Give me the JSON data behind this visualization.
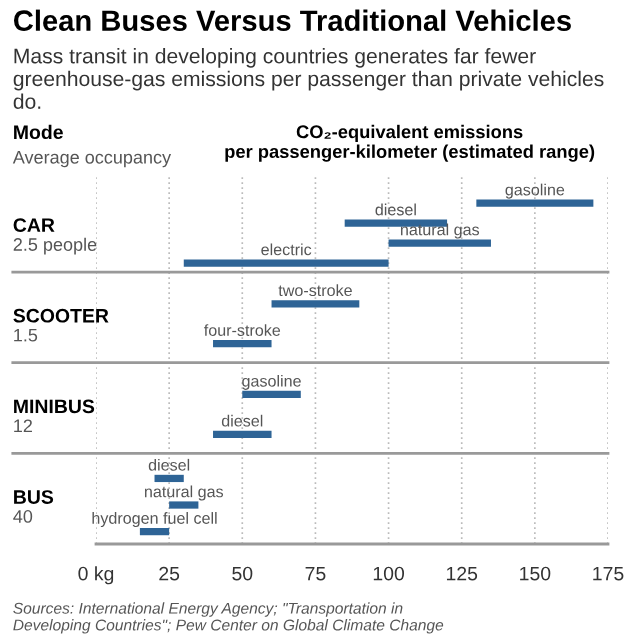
{
  "chart_data": [
    {
      "type": "other",
      "title": "Clean Buses Versus Traditional Vehicles",
      "subtitle": "Mass transit in developing countries generates far fewer greenhouse-gas emissions per passenger than private vehicles do.",
      "annotations": [
        "Mode",
        "Average occupancy",
        "CO₂-equivalent emissions\nper passenger-kilometer (estimated range)",
        "Sources: International Energy Agency; \"Transportation in\nDeveloping Countries\"; Pew Center on Global Climate Change"
      ]
    },
    {
      "type": "bar",
      "orientation": "horizontal",
      "categories": [
        "CAR",
        "SCOOTER",
        "MINIBUS",
        "BUS"
      ],
      "series": [
        {
          "name": "gasoline",
          "color": "#2e6496",
          "base": [
            130,
            null,
            50,
            null
          ],
          "values": [
            40,
            null,
            20,
            null
          ]
        },
        {
          "name": "diesel",
          "color": "#2e6496",
          "base": [
            85,
            null,
            40,
            20
          ],
          "values": [
            35,
            null,
            20,
            10
          ]
        },
        {
          "name": "natural gas",
          "color": "#2e6496",
          "base": [
            100,
            null,
            null,
            25
          ],
          "values": [
            35,
            null,
            null,
            10
          ]
        },
        {
          "name": "electric",
          "color": "#2e6496",
          "base": [
            30,
            null,
            null,
            null
          ],
          "values": [
            70,
            null,
            null,
            null
          ]
        },
        {
          "name": "two-stroke",
          "color": "#2e6496",
          "base": [
            null,
            60,
            null,
            null
          ],
          "values": [
            null,
            30,
            null,
            null
          ]
        },
        {
          "name": "four-stroke",
          "color": "#2e6496",
          "base": [
            null,
            40,
            null,
            null
          ],
          "values": [
            null,
            20,
            null,
            null
          ]
        },
        {
          "name": "hydrogen fuel cell",
          "color": "#2e6496",
          "base": [
            null,
            null,
            null,
            15
          ],
          "values": [
            null,
            null,
            null,
            10
          ]
        }
      ],
      "annotations": [
        "2.5 people",
        "1.5",
        "12",
        "40"
      ],
      "xlim": [
        0,
        175
      ],
      "xticks": [
        {
          "value": 0,
          "label": "0 kg"
        },
        25,
        50,
        75,
        100,
        125,
        150,
        175
      ],
      "grid": "x"
    }
  ]
}
